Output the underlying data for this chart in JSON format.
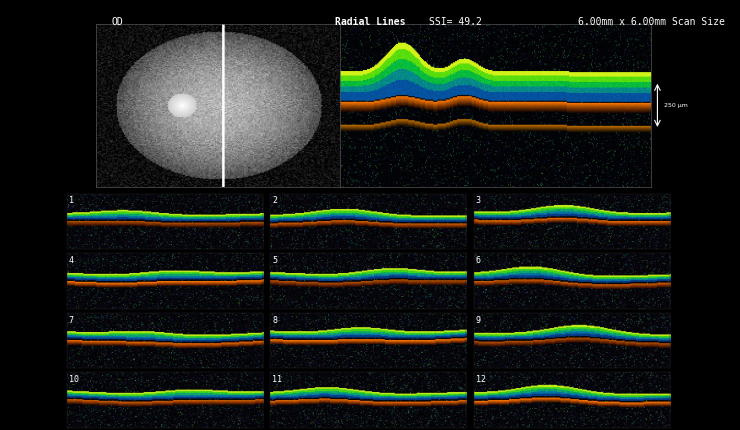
{
  "background_color": "#000000",
  "header_text_color": "#ffffff",
  "label_od": "OD",
  "label_radial": "Radial Lines",
  "label_ssi": "SSI= 49.2",
  "label_scan_size": "6.00mm x 6.00mm Scan Size",
  "label_scale": "250 µm",
  "scan_labels": [
    "1",
    "2",
    "3",
    "4",
    "5",
    "6",
    "7",
    "8",
    "9",
    "10",
    "11",
    "12"
  ],
  "header_fontsize": 7,
  "scan_label_fontsize": 6,
  "scale_fontsize": 6
}
